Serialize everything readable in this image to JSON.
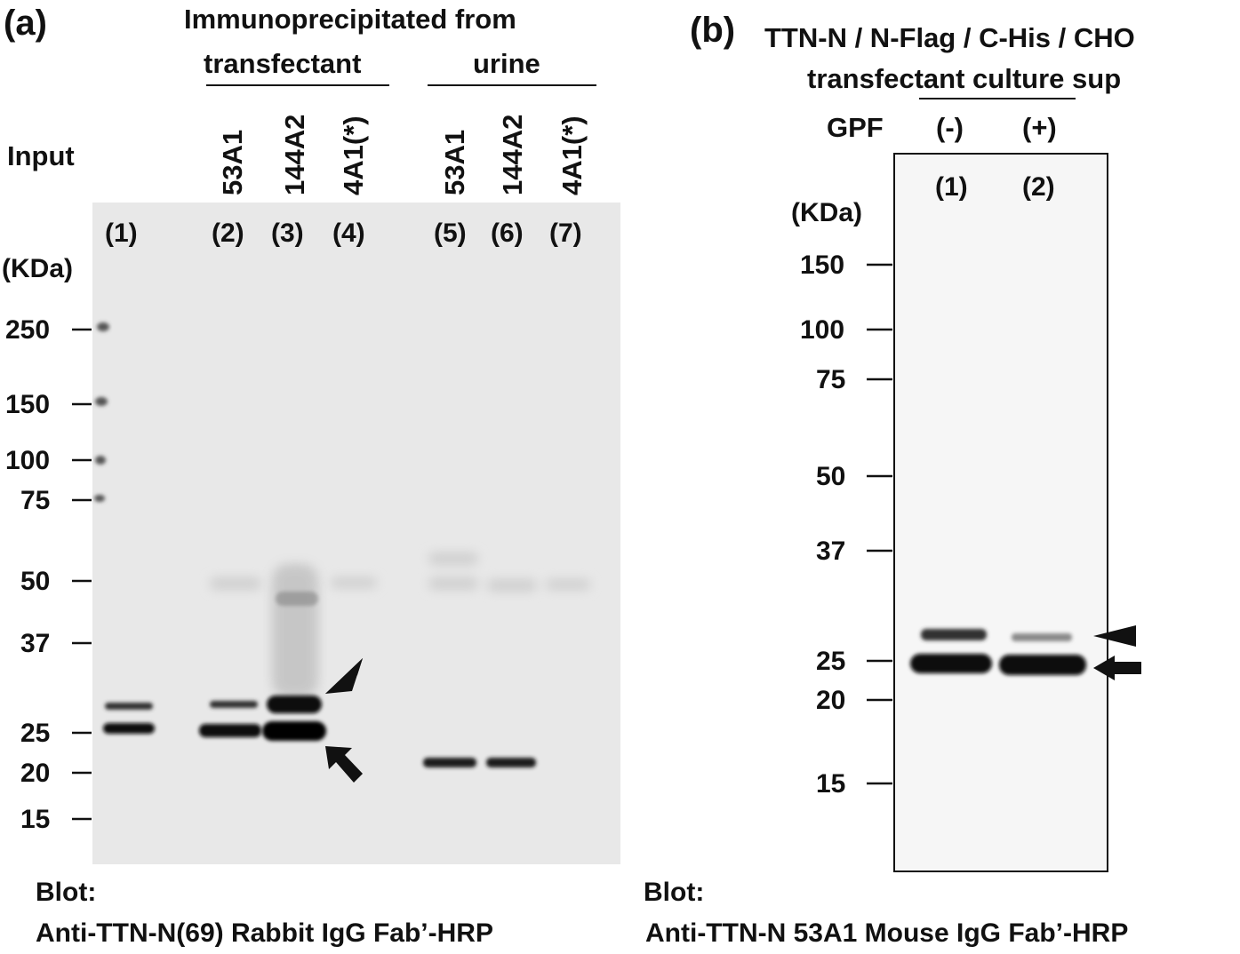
{
  "panel_a": {
    "letter": "(a)",
    "header_line1": "Immunoprecipitated from",
    "group_transfectant": "transfectant",
    "group_urine": "urine",
    "input_label": "Input",
    "clone_labels": [
      "53A1",
      "144A2",
      "4A1(*)",
      "53A1",
      "144A2",
      "4A1(*)"
    ],
    "lane_labels": [
      "(1)",
      "(2)",
      "(3)",
      "(4)",
      "(5)",
      "(6)",
      "(7)"
    ],
    "kda_label": "(KDa)",
    "markers": [
      "250",
      "150",
      "100",
      "75",
      "50",
      "37",
      "25",
      "20",
      "15"
    ],
    "blot_label": "Blot:",
    "antibody": "Anti-TTN-N(69) Rabbit IgG Fab’-HRP"
  },
  "panel_b": {
    "letter": "(b)",
    "header_line1": "TTN-N / N-Flag / C-His / CHO",
    "header_line2": "transfectant culture sup",
    "gpf_label": "GPF",
    "gpf_values": [
      "(-)",
      "(+)"
    ],
    "lane_labels": [
      "(1)",
      "(2)"
    ],
    "kda_label": "(KDa)",
    "markers": [
      "150",
      "100",
      "75",
      "50",
      "37",
      "25",
      "20",
      "15"
    ],
    "blot_label": "Blot:",
    "antibody": "Anti-TTN-N 53A1 Mouse IgG Fab’-HRP"
  },
  "colors": {
    "membrane": "#e7e7e7",
    "band": "#111111",
    "text": "#111111"
  },
  "icons": [
    "arrowhead-icon",
    "arrow-icon"
  ]
}
